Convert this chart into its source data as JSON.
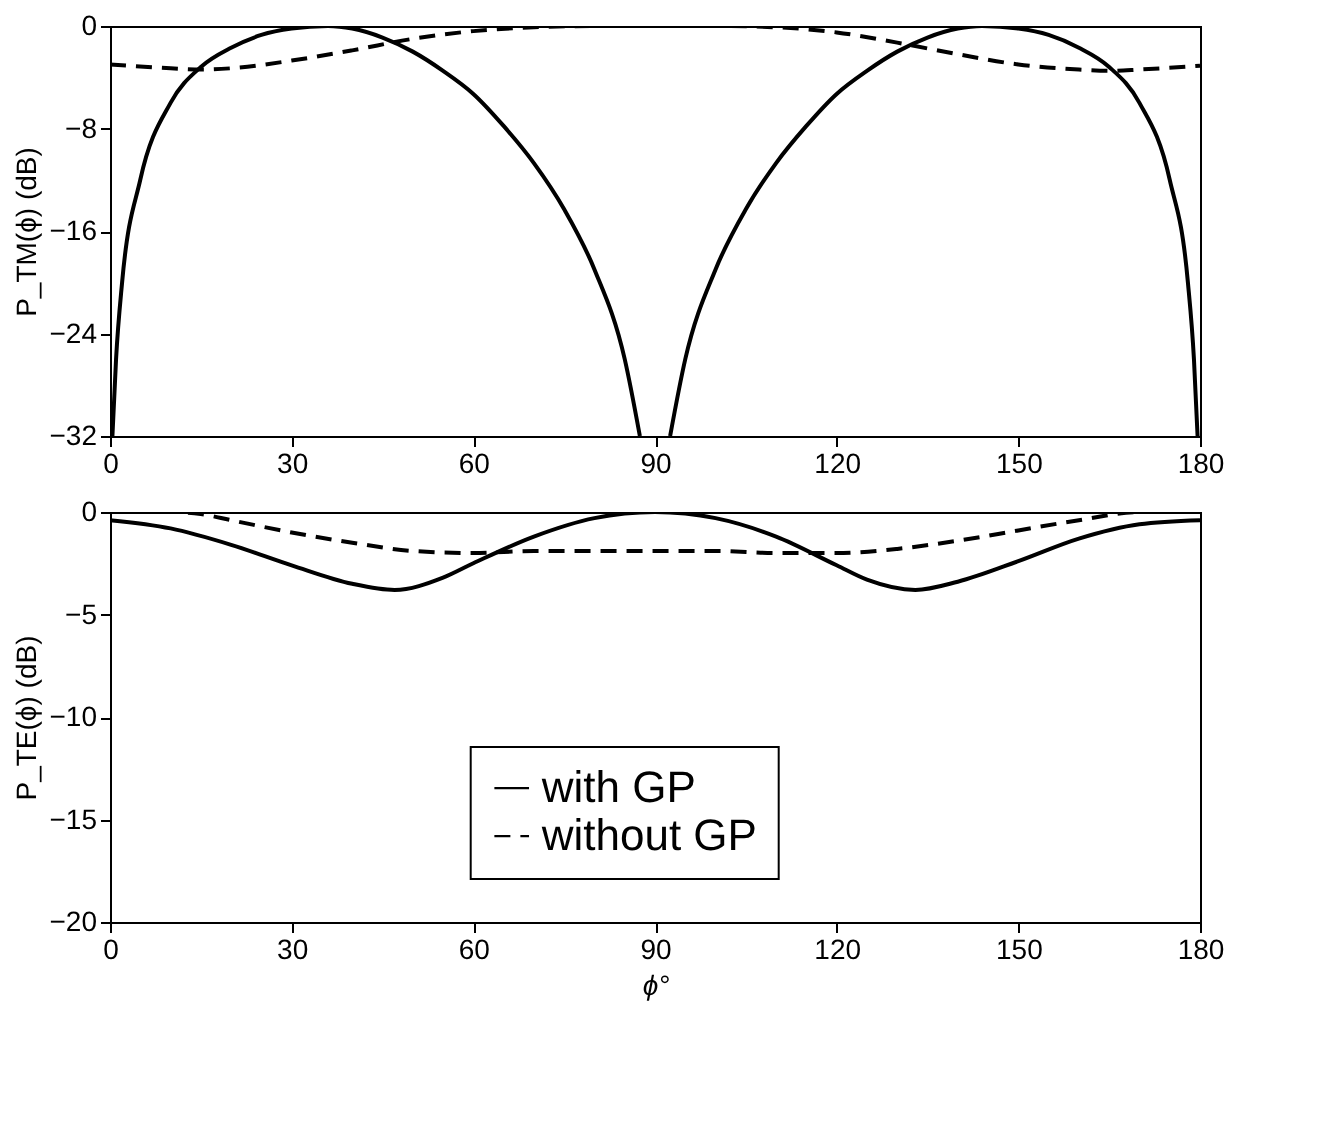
{
  "chart_data": [
    {
      "type": "line",
      "ylabel": "P_TM(ϕ) (dB)",
      "xlim": [
        0,
        180
      ],
      "xticks": [
        0,
        30,
        60,
        90,
        120,
        150,
        180
      ],
      "ylim": [
        -32,
        0
      ],
      "yticks": [
        0,
        -8,
        -16,
        -24,
        -32
      ],
      "grid": false,
      "legend": false,
      "marker": "none",
      "series": [
        {
          "color": "#000000",
          "line_style": "solid",
          "x": [
            0.4,
            1,
            2,
            5,
            10,
            15,
            20,
            25,
            30,
            36,
            40,
            45,
            50,
            55,
            60,
            65,
            70,
            75,
            80,
            85,
            87.5
          ],
          "values": [
            -32,
            -26,
            -20,
            -12,
            -6,
            -3.2,
            -1.7,
            -0.7,
            -0.2,
            0,
            -0.2,
            -0.9,
            -2,
            -3.5,
            -5.3,
            -7.8,
            -10.7,
            -14.3,
            -19,
            -26,
            -32
          ]
        },
        {
          "color": "#000000",
          "line_style": "solid",
          "x": [
            92.5,
            95,
            100,
            105,
            110,
            115,
            120,
            125,
            130,
            135,
            140,
            144,
            150,
            155,
            160,
            165,
            170,
            175,
            178,
            179,
            179.6
          ],
          "values": [
            -32,
            -26,
            -19,
            -14.3,
            -10.7,
            -7.8,
            -5.3,
            -3.5,
            -2,
            -0.9,
            -0.2,
            0,
            -0.2,
            -0.7,
            -1.7,
            -3.2,
            -6,
            -12,
            -20,
            -26,
            -32
          ]
        },
        {
          "color": "#000000",
          "line_style": "dashed",
          "x": [
            0,
            10,
            15,
            20,
            30,
            40,
            50,
            60,
            70,
            80,
            90,
            100,
            110,
            120,
            130,
            140,
            150,
            160,
            165,
            170,
            180
          ],
          "values": [
            -3,
            -3.3,
            -3.4,
            -3.3,
            -2.7,
            -1.9,
            -1,
            -0.4,
            -0.1,
            0,
            0,
            0,
            -0.1,
            -0.5,
            -1.3,
            -2.2,
            -3,
            -3.4,
            -3.5,
            -3.4,
            -3.1
          ]
        }
      ]
    },
    {
      "type": "line",
      "xlabel": "ϕ°",
      "ylabel": "P_TE(ϕ) (dB)",
      "xlim": [
        0,
        180
      ],
      "xticks": [
        0,
        30,
        60,
        90,
        120,
        150,
        180
      ],
      "ylim": [
        -20,
        0
      ],
      "yticks": [
        0,
        -5,
        -10,
        -15,
        -20
      ],
      "grid": false,
      "legend": "bottom",
      "marker": "none",
      "series": [
        {
          "name": "with GP",
          "color": "#000000",
          "line_style": "solid",
          "x": [
            0,
            10,
            20,
            30,
            40,
            47,
            55,
            60,
            70,
            80,
            90,
            100,
            110,
            120,
            125,
            133,
            140,
            150,
            160,
            170,
            180
          ],
          "values": [
            -0.4,
            -0.8,
            -1.6,
            -2.6,
            -3.5,
            -3.8,
            -3.2,
            -2.5,
            -1.2,
            -0.3,
            0,
            -0.3,
            -1.2,
            -2.6,
            -3.3,
            -3.8,
            -3.4,
            -2.4,
            -1.3,
            -0.6,
            -0.4
          ]
        },
        {
          "name": "without GP",
          "color": "#000000",
          "line_style": "dashed",
          "x": [
            0,
            10,
            15,
            20,
            30,
            40,
            50,
            60,
            70,
            80,
            90,
            100,
            110,
            120,
            130,
            140,
            150,
            160,
            170,
            180
          ],
          "values": [
            0,
            0,
            -0.1,
            -0.4,
            -1,
            -1.5,
            -1.9,
            -2,
            -1.9,
            -1.9,
            -1.9,
            -1.9,
            -2,
            -2,
            -1.8,
            -1.4,
            -0.9,
            -0.4,
            0,
            0
          ]
        }
      ]
    }
  ]
}
